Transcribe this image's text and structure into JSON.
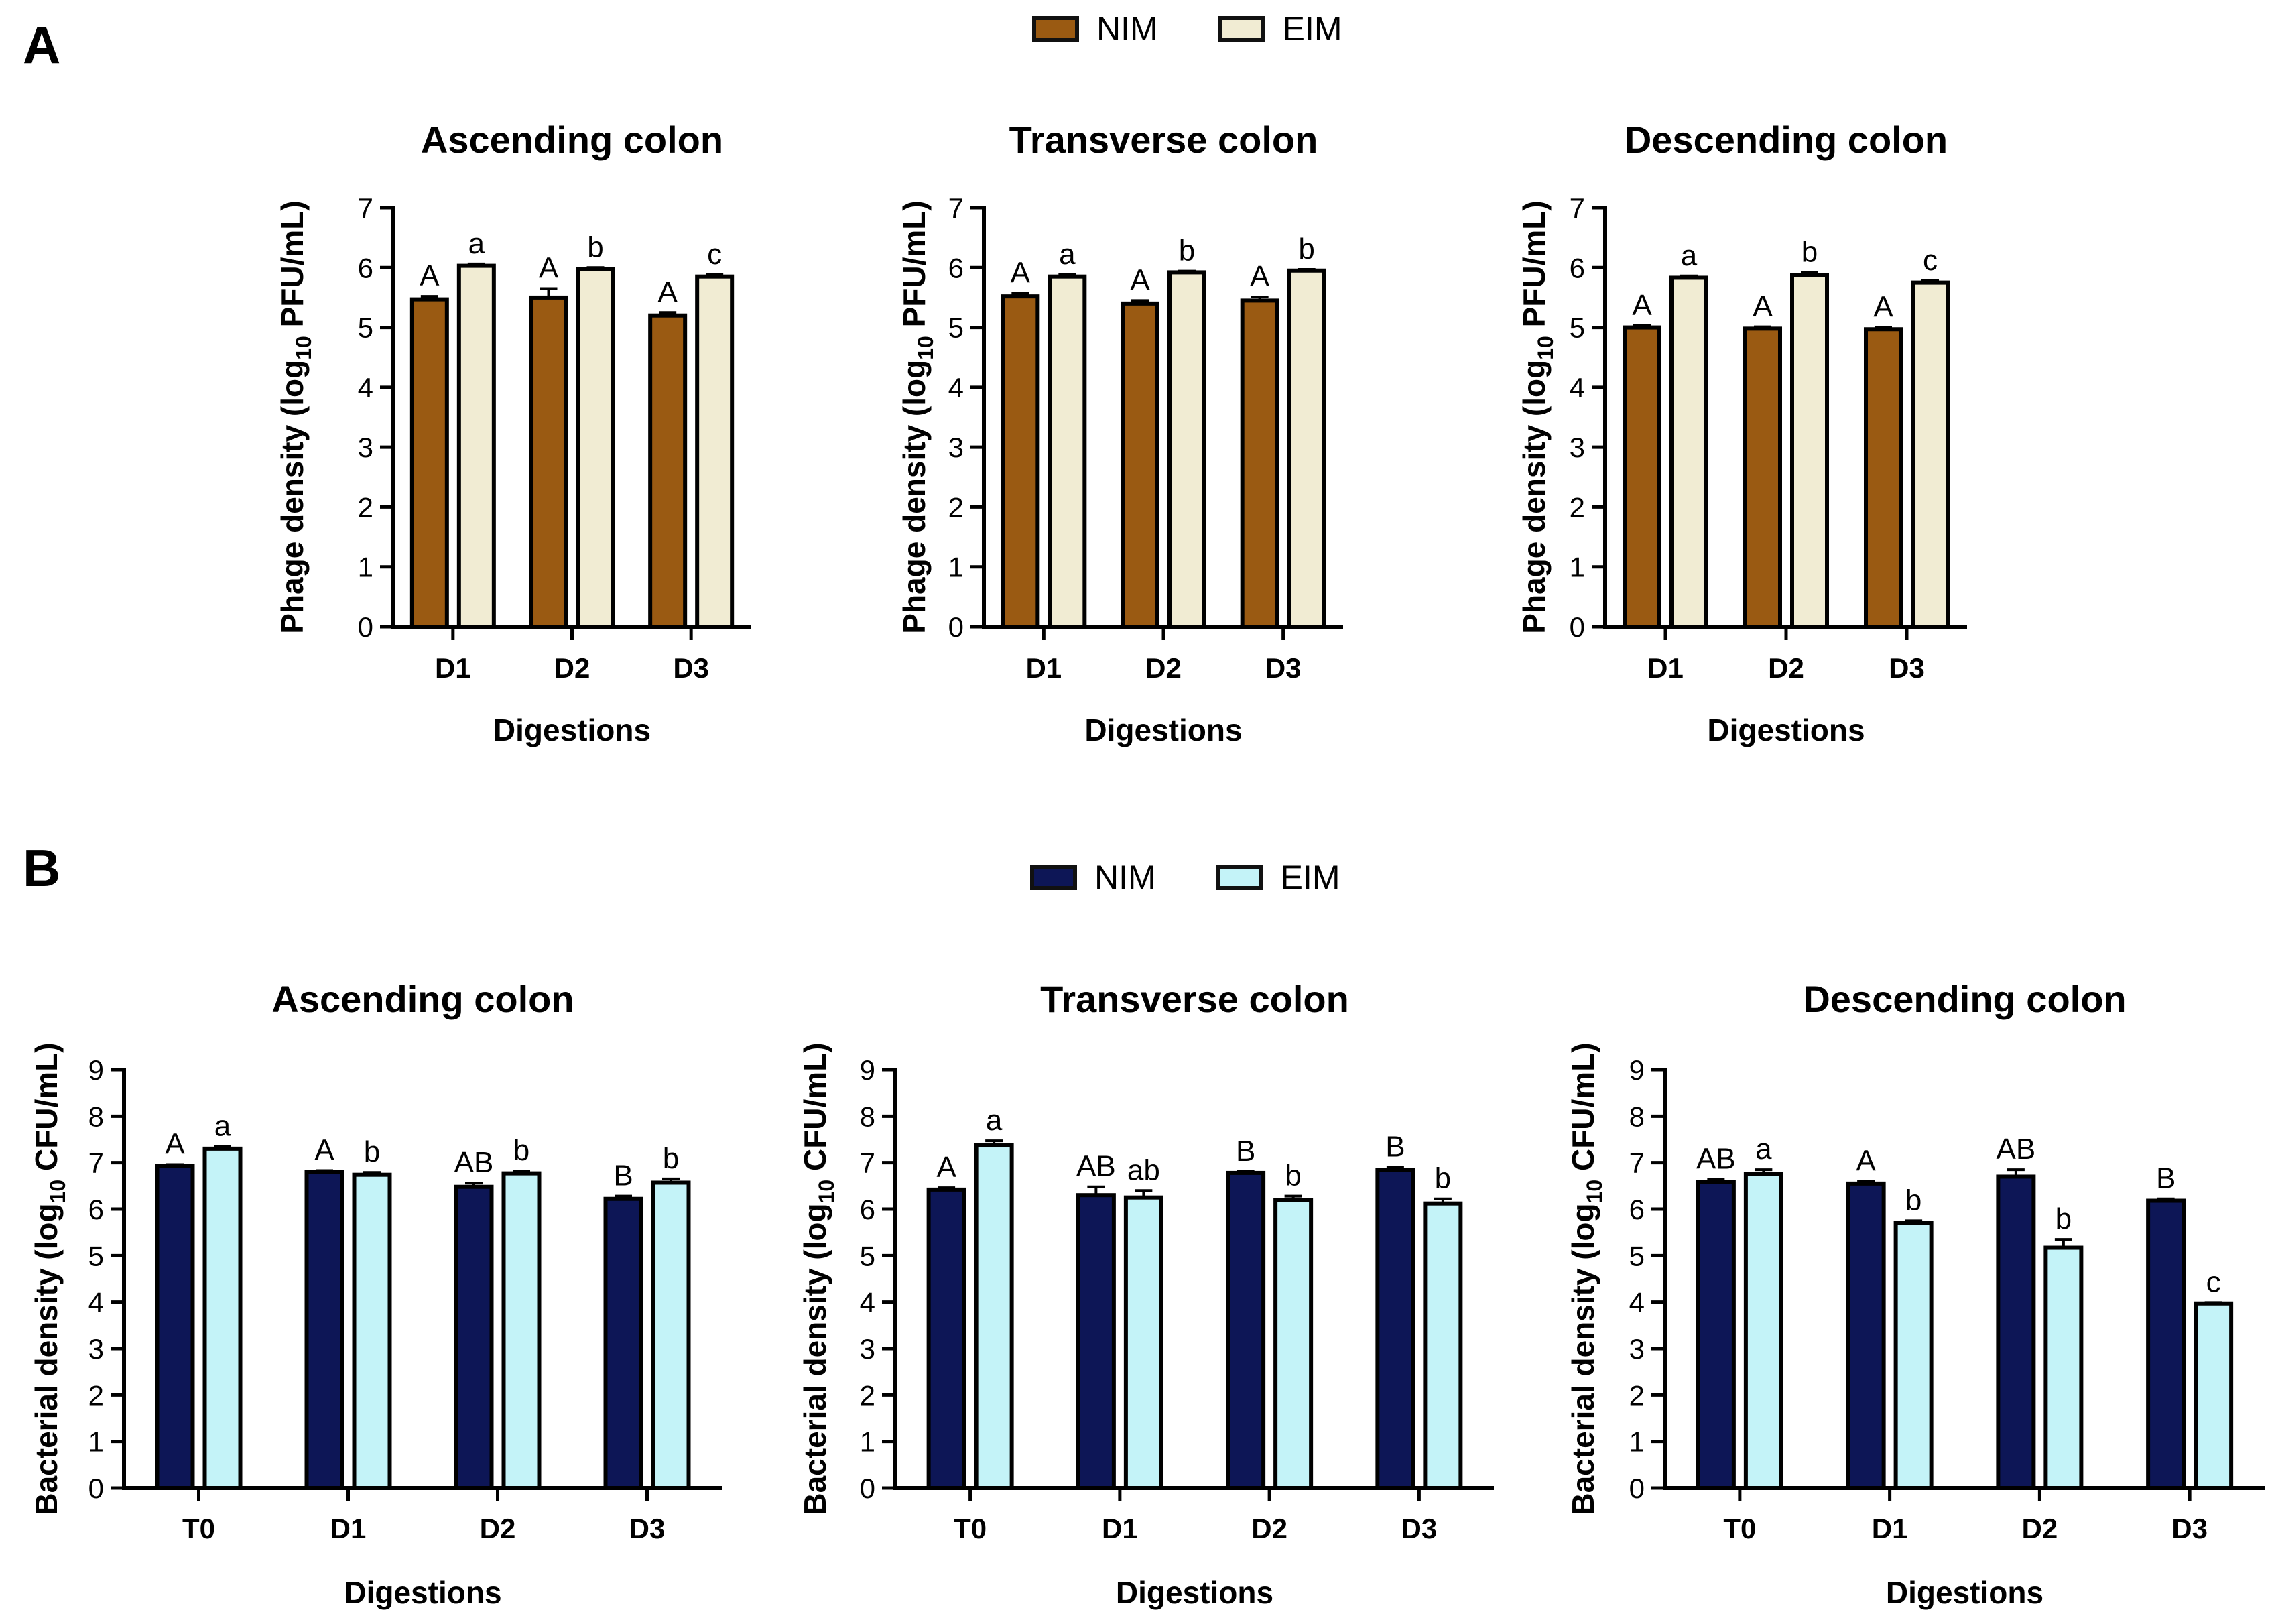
{
  "panels": {
    "a": {
      "letter": "A",
      "legend": [
        {
          "label": "NIM",
          "color": "#9a5a12"
        },
        {
          "label": "EIM",
          "color": "#f1ecd3"
        }
      ]
    },
    "b": {
      "letter": "B",
      "legend": [
        {
          "label": "NIM",
          "color": "#0d1656"
        },
        {
          "label": "EIM",
          "color": "#c4f3f8"
        }
      ]
    }
  },
  "chart_data": [
    {
      "type": "bar",
      "id": "a1",
      "title": "Ascending colon",
      "xlabel": "Digestions",
      "ylabel_prefix": "Phage density (log",
      "ylabel_sub": "10",
      "ylabel_suffix": " PFU/mL)",
      "ylim": [
        0,
        7
      ],
      "yticks": [
        "0",
        "1",
        "2",
        "3",
        "4",
        "5",
        "6",
        "7"
      ],
      "categories": [
        "D1",
        "D2",
        "D3"
      ],
      "series": [
        {
          "name": "NIM",
          "color": "#9a5a12",
          "values": [
            5.47,
            5.5,
            5.2
          ],
          "errors": [
            0.05,
            0.15,
            0.05
          ],
          "letters": [
            "A",
            "A",
            "A"
          ]
        },
        {
          "name": "EIM",
          "color": "#f1ecd3",
          "values": [
            6.03,
            5.97,
            5.85
          ],
          "errors": [
            0.03,
            0.03,
            0.03
          ],
          "letters": [
            "a",
            "b",
            "c"
          ]
        }
      ]
    },
    {
      "type": "bar",
      "id": "a2",
      "title": "Transverse colon",
      "xlabel": "Digestions",
      "ylabel_prefix": "Phage density (log",
      "ylabel_sub": "10",
      "ylabel_suffix": " PFU/mL)",
      "ylim": [
        0,
        7
      ],
      "yticks": [
        "0",
        "1",
        "2",
        "3",
        "4",
        "5",
        "6",
        "7"
      ],
      "categories": [
        "D1",
        "D2",
        "D3"
      ],
      "series": [
        {
          "name": "NIM",
          "color": "#9a5a12",
          "values": [
            5.52,
            5.4,
            5.45
          ],
          "errors": [
            0.05,
            0.05,
            0.06
          ],
          "letters": [
            "A",
            "A",
            "A"
          ]
        },
        {
          "name": "EIM",
          "color": "#f1ecd3",
          "values": [
            5.85,
            5.92,
            5.95
          ],
          "errors": [
            0.03,
            0.02,
            0.02
          ],
          "letters": [
            "a",
            "b",
            "b"
          ]
        }
      ]
    },
    {
      "type": "bar",
      "id": "a3",
      "title": "Descending colon",
      "xlabel": "Digestions",
      "ylabel_prefix": "Phage density (log",
      "ylabel_sub": "10",
      "ylabel_suffix": " PFU/mL)",
      "ylim": [
        0,
        7
      ],
      "yticks": [
        "0",
        "1",
        "2",
        "3",
        "4",
        "5",
        "6",
        "7"
      ],
      "categories": [
        "D1",
        "D2",
        "D3"
      ],
      "series": [
        {
          "name": "NIM",
          "color": "#9a5a12",
          "values": [
            5.0,
            4.98,
            4.97
          ],
          "errors": [
            0.03,
            0.03,
            0.03
          ],
          "letters": [
            "A",
            "A",
            "A"
          ]
        },
        {
          "name": "EIM",
          "color": "#f1ecd3",
          "values": [
            5.83,
            5.88,
            5.75
          ],
          "errors": [
            0.03,
            0.04,
            0.03
          ],
          "letters": [
            "a",
            "b",
            "c"
          ]
        }
      ]
    },
    {
      "type": "bar",
      "id": "b1",
      "title": "Ascending colon",
      "xlabel": "Digestions",
      "ylabel_prefix": "Bacterial density (log",
      "ylabel_sub": "10",
      "ylabel_suffix": " CFU/mL)",
      "ylim": [
        0,
        9
      ],
      "yticks": [
        "0",
        "1",
        "2",
        "3",
        "4",
        "5",
        "6",
        "7",
        "8",
        "9"
      ],
      "categories": [
        "T0",
        "D1",
        "D2",
        "D3"
      ],
      "series": [
        {
          "name": "NIM",
          "color": "#0d1656",
          "values": [
            6.93,
            6.8,
            6.48,
            6.22
          ],
          "errors": [
            0.03,
            0.03,
            0.08,
            0.06
          ],
          "letters": [
            "A",
            "A",
            "AB",
            "B"
          ]
        },
        {
          "name": "EIM",
          "color": "#c4f3f8",
          "values": [
            7.3,
            6.74,
            6.77,
            6.57
          ],
          "errors": [
            0.05,
            0.05,
            0.05,
            0.08
          ],
          "letters": [
            "a",
            "b",
            "b",
            "b"
          ]
        }
      ]
    },
    {
      "type": "bar",
      "id": "b2",
      "title": "Transverse colon",
      "xlabel": "Digestions",
      "ylabel_prefix": "Bacterial density (log",
      "ylabel_sub": "10",
      "ylabel_suffix": " CFU/mL)",
      "ylim": [
        0,
        9
      ],
      "yticks": [
        "0",
        "1",
        "2",
        "3",
        "4",
        "5",
        "6",
        "7",
        "8",
        "9"
      ],
      "categories": [
        "T0",
        "D1",
        "D2",
        "D3"
      ],
      "series": [
        {
          "name": "NIM",
          "color": "#0d1656",
          "values": [
            6.42,
            6.3,
            6.78,
            6.85
          ],
          "errors": [
            0.04,
            0.18,
            0.03,
            0.05
          ],
          "letters": [
            "A",
            "AB",
            "B",
            "B"
          ]
        },
        {
          "name": "EIM",
          "color": "#c4f3f8",
          "values": [
            7.37,
            6.25,
            6.2,
            6.12
          ],
          "errors": [
            0.1,
            0.15,
            0.08,
            0.1
          ],
          "letters": [
            "a",
            "ab",
            "b",
            "b"
          ]
        }
      ]
    },
    {
      "type": "bar",
      "id": "b3",
      "title": "Descending colon",
      "xlabel": "Digestions",
      "ylabel_prefix": "Bacterial density (log",
      "ylabel_sub": "10",
      "ylabel_suffix": " CFU/mL)",
      "ylim": [
        0,
        9
      ],
      "yticks": [
        "0",
        "1",
        "2",
        "3",
        "4",
        "5",
        "6",
        "7",
        "8",
        "9"
      ],
      "categories": [
        "T0",
        "D1",
        "D2",
        "D3"
      ],
      "series": [
        {
          "name": "NIM",
          "color": "#0d1656",
          "values": [
            6.58,
            6.55,
            6.7,
            6.18
          ],
          "errors": [
            0.06,
            0.05,
            0.15,
            0.04
          ],
          "letters": [
            "AB",
            "A",
            "AB",
            "B"
          ]
        },
        {
          "name": "EIM",
          "color": "#c4f3f8",
          "values": [
            6.75,
            5.7,
            5.17,
            3.97
          ],
          "errors": [
            0.1,
            0.05,
            0.18,
            0.02
          ],
          "letters": [
            "a",
            "b",
            "b",
            "c"
          ]
        }
      ]
    }
  ]
}
